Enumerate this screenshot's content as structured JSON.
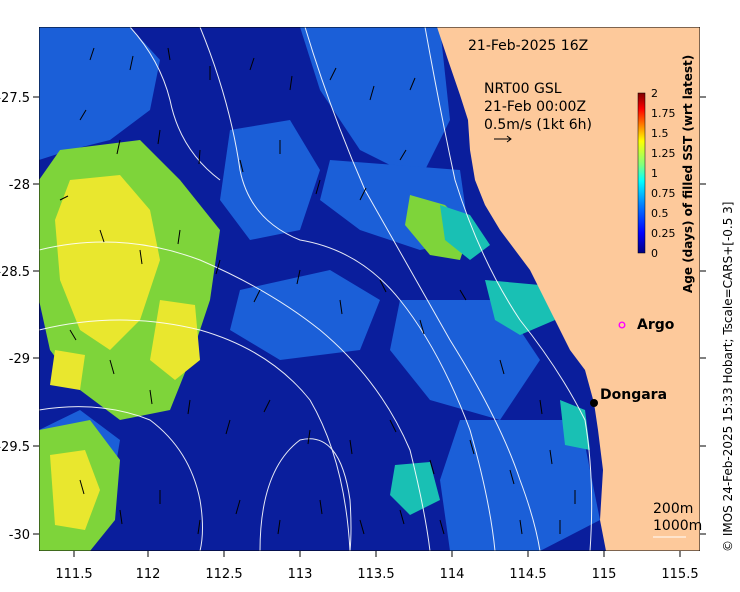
{
  "map": {
    "timestamp": "21-Feb-2025 16Z",
    "product": "NRT00 GSL",
    "vector_time": "21-Feb 00:00Z",
    "vector_scale": "0.5m/s (1kt 6h)",
    "x_ticks": [
      "111.5",
      "112",
      "112.5",
      "113",
      "113.5",
      "114",
      "114.5",
      "115",
      "115.5"
    ],
    "y_ticks": [
      "-27.5",
      "-28",
      "-28.5",
      "-29",
      "-29.5",
      "-30"
    ],
    "places": [
      {
        "name": "Argo",
        "marker": "open-circle",
        "color": "#ff00ff"
      },
      {
        "name": "Dongara",
        "marker": "filled-circle",
        "color": "#000000"
      }
    ],
    "isobaths": [
      "200m",
      "1000m"
    ]
  },
  "colorbar": {
    "title": "Age (days) of filled SST (wrt latest)",
    "ticks": [
      "2",
      "1.75",
      "1.5",
      "1.25",
      "1",
      "0.75",
      "0.5",
      "0.25",
      "0"
    ],
    "colors": [
      "#00007f",
      "#0000ff",
      "#007fff",
      "#00ffff",
      "#7fff7f",
      "#ffff00",
      "#ff7f00",
      "#ff0000",
      "#7f0000"
    ]
  },
  "colors": {
    "land": "#fdc99b",
    "ocean_deep": "#0a1e9c",
    "ocean_mid": "#1b5fd8",
    "cyan_patch": "#19c0b4",
    "green_patch": "#7ed43a",
    "yellow_patch": "#e9e72e"
  },
  "credit": "© IMOS 24-Feb-2025 15:33 Hobart; Tscale=CARS+[-0.5 3]"
}
